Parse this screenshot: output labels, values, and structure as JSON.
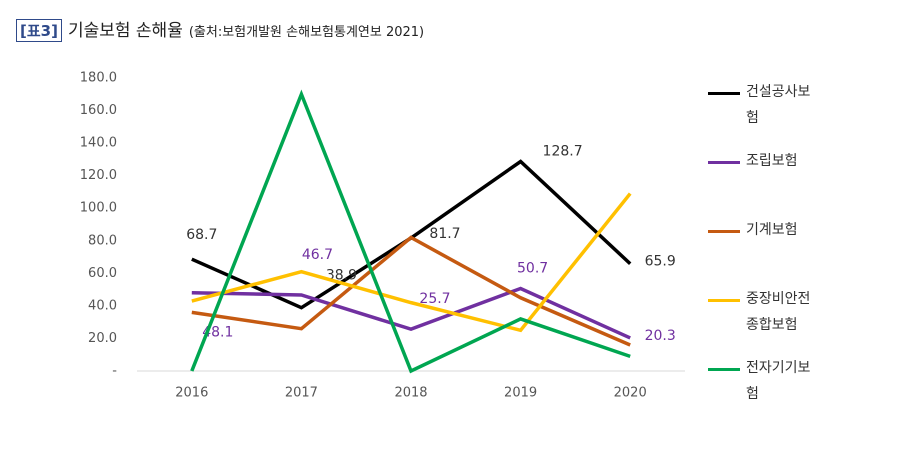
{
  "chart_data": {
    "type": "line",
    "title_tag": "[표3]",
    "title": "기술보험 손해율",
    "subtitle": "(출처:보험개발원 손해보험통계연보 2021)",
    "categories": [
      "2016",
      "2017",
      "2018",
      "2019",
      "2020"
    ],
    "ylim": [
      0,
      180
    ],
    "yticks": [
      {
        "value": 0,
        "label": "-"
      },
      {
        "value": 20,
        "label": "20.0"
      },
      {
        "value": 40,
        "label": "40.0"
      },
      {
        "value": 60,
        "label": "60.0"
      },
      {
        "value": 80,
        "label": "80.0"
      },
      {
        "value": 100,
        "label": "100.0"
      },
      {
        "value": 120,
        "label": "120.0"
      },
      {
        "value": 140,
        "label": "140.0"
      },
      {
        "value": 160,
        "label": "160.0"
      },
      {
        "value": 180,
        "label": "180.0"
      }
    ],
    "grid": false,
    "legend": "right",
    "series": [
      {
        "name": "건설공사보험",
        "color": "#000000",
        "values": [
          68.7,
          38.9,
          81.7,
          128.7,
          65.9
        ],
        "show_labels": true,
        "label_color": "#333333"
      },
      {
        "name": "조립보험",
        "color": "#7030a0",
        "values": [
          48.1,
          46.7,
          25.7,
          50.7,
          20.3
        ],
        "show_labels": true,
        "label_color": "#7030a0"
      },
      {
        "name": "기계보험",
        "color": "#c55a11",
        "values": [
          36,
          26,
          82,
          45,
          16
        ],
        "show_labels": false
      },
      {
        "name": "중장비안전종합보험",
        "color": "#ffc000",
        "values": [
          43,
          61,
          42,
          25,
          109
        ],
        "show_labels": false
      },
      {
        "name": "전자기기보험",
        "color": "#00a651",
        "values": [
          0,
          170,
          0,
          32,
          9
        ],
        "show_labels": false
      }
    ]
  }
}
